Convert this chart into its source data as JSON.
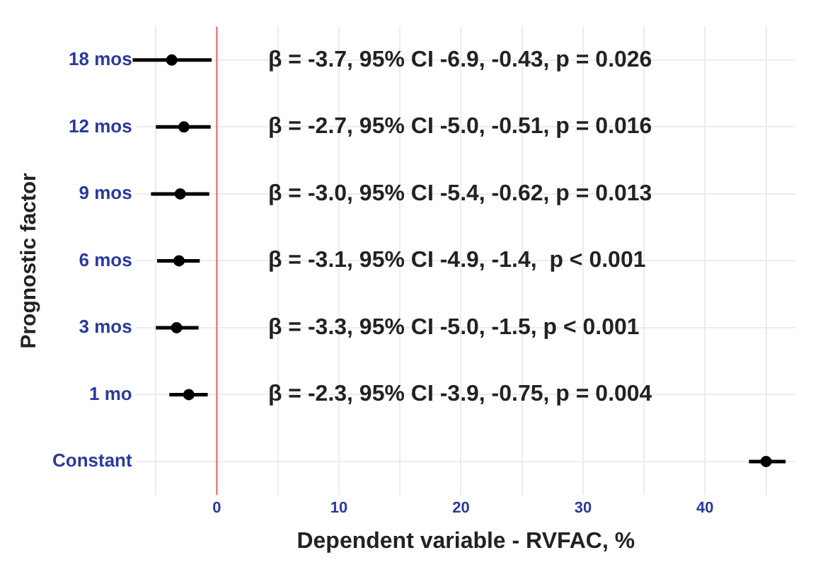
{
  "chart_data": {
    "type": "scatter",
    "orientation": "horizontal",
    "xlabel": "Dependent variable - RVFAC, %",
    "ylabel": "Prognostic factor",
    "categories": [
      "18 mos",
      "12 mos",
      "9 mos",
      "6 mos",
      "3 mos",
      "1 mo",
      "Constant"
    ],
    "values": [
      -3.7,
      -2.7,
      -3.0,
      -3.1,
      -3.3,
      -2.3,
      45.0
    ],
    "errors": [
      [
        -6.9,
        -0.43
      ],
      [
        -5.0,
        -0.51
      ],
      [
        -5.4,
        -0.62
      ],
      [
        -4.9,
        -1.4
      ],
      [
        -5.0,
        -1.5
      ],
      [
        -3.9,
        -0.75
      ],
      [
        43.6,
        46.6
      ]
    ],
    "color": "#000000",
    "marker": "circle",
    "grid": true,
    "xlim": [
      -6.6,
      47.4
    ],
    "xticks": [
      {
        "value": -5,
        "label": null
      },
      0,
      {
        "value": 5,
        "label": null
      },
      10,
      {
        "value": 15,
        "label": null
      },
      20,
      {
        "value": 25,
        "label": null
      },
      30,
      {
        "value": 35,
        "label": null
      },
      40,
      {
        "value": 45,
        "label": null
      }
    ],
    "ref_lines": [
      {
        "axis": "x",
        "value": 0,
        "color": "#f06060"
      }
    ],
    "annotations": [
      "β = -3.7, 95% CI -6.9, -0.43, p = 0.026",
      "β = -2.7, 95% CI -5.0, -0.51, p = 0.016",
      "β = -3.0, 95% CI -5.4, -0.62, p = 0.013",
      "β = -3.1, 95% CI -4.9, -1.4,  p < 0.001",
      "β = -3.3, 95% CI -5.0, -1.5, p < 0.001",
      "β = -2.3, 95% CI -3.9, -0.75, p = 0.004"
    ]
  }
}
